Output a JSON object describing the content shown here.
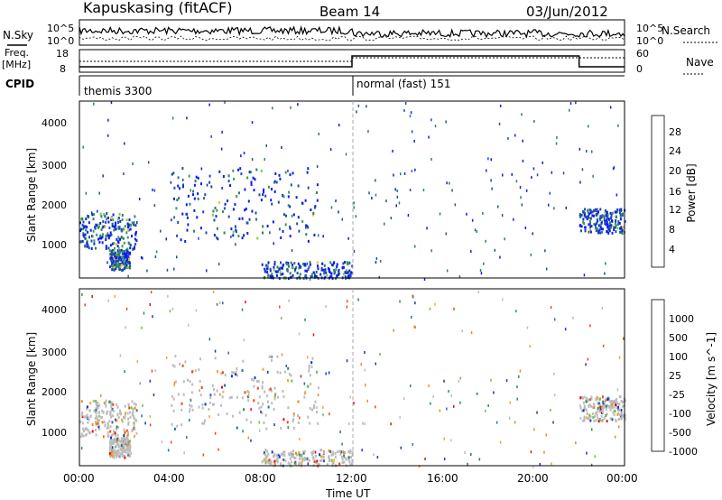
{
  "header": {
    "station": "Kapuskasing (fitACF)",
    "beam": "Beam 14",
    "date": "03/Jun/2012"
  },
  "top_panels": {
    "nsky_label": "N.Sky",
    "nsky_ticks": [
      "10^5",
      "10^0"
    ],
    "nsearch_label": "N.Search",
    "nsearch_ticks": [
      "10^5",
      "10^0"
    ],
    "freq_label": "Freq.",
    "freq_unit": "[MHz]",
    "freq_ticks": [
      "18",
      "8"
    ],
    "nave_label": "Nave",
    "nave_ticks": [
      "60",
      "0"
    ],
    "cpid_label": "CPID",
    "cpid_segments": [
      {
        "text": "themis 3300",
        "start_hour": 0,
        "end_hour": 12
      },
      {
        "text": "normal (fast) 151",
        "start_hour": 12,
        "end_hour": 24
      }
    ]
  },
  "colors": {
    "power_scale": [
      "#0a1ef0",
      "#1f4faa",
      "#2e7d6a",
      "#3e9a55",
      "#7ccf3c",
      "#f2c12e",
      "#f59a1e",
      "#f06a1a",
      "#e63b14",
      "#d01010"
    ],
    "velocity_scale": [
      "#1535c8",
      "#2a6ea0",
      "#2f8c5a",
      "#68c04a",
      "#bcbcbc",
      "#bcbcbc",
      "#f6a623",
      "#f08a1c",
      "#ec4a14",
      "#e01010"
    ]
  },
  "chart_data": [
    {
      "type": "heatmap",
      "panel": "Power",
      "xlabel": "",
      "ylabel": "Slant Range [km]",
      "ylim": [
        180,
        4500
      ],
      "xlim": [
        0,
        24
      ],
      "yticks": [
        "1000",
        "2000",
        "3000",
        "4000"
      ],
      "colorbar_label": "Power [dB]",
      "colorbar_ticks": [
        "28",
        "24",
        "20",
        "16",
        "12",
        "8",
        "4"
      ],
      "features": [
        {
          "from_hour": 0.0,
          "to_hour": 2.5,
          "range_km": [
            900,
            1800
          ],
          "level": "weak-moderate"
        },
        {
          "from_hour": 1.3,
          "to_hour": 2.2,
          "range_km": [
            400,
            900
          ],
          "level": "moderate"
        },
        {
          "from_hour": 4.0,
          "to_hour": 10.5,
          "range_km": [
            1100,
            2900
          ],
          "level": "weak-moderate"
        },
        {
          "from_hour": 8.0,
          "to_hour": 12.0,
          "range_km": [
            200,
            600
          ],
          "level": "moderate"
        },
        {
          "from_hour": 22.0,
          "to_hour": 24.0,
          "range_km": [
            1300,
            1900
          ],
          "level": "weak"
        }
      ]
    },
    {
      "type": "heatmap",
      "panel": "Velocity",
      "xlabel": "Time UT",
      "ylabel": "Slant Range [km]",
      "ylim": [
        180,
        4500
      ],
      "xlim": [
        0,
        24
      ],
      "xticks": [
        "00:00",
        "04:00",
        "08:00",
        "12:00",
        "16:00",
        "20:00",
        "00:00"
      ],
      "yticks": [
        "1000",
        "2000",
        "3000",
        "4000"
      ],
      "colorbar_label": "Velocity [m s^-1]",
      "colorbar_ticks": [
        "1000",
        "500",
        "100",
        "25",
        "-25",
        "-100",
        "-500",
        "-1000"
      ],
      "features": [
        {
          "from_hour": 0.0,
          "to_hour": 2.5,
          "range_km": [
            900,
            1800
          ],
          "level": "ground-scatter"
        },
        {
          "from_hour": 4.0,
          "to_hour": 10.5,
          "range_km": [
            1100,
            2900
          ],
          "level": "ground-scatter"
        },
        {
          "from_hour": 8.0,
          "to_hour": 12.0,
          "range_km": [
            200,
            600
          ],
          "level": "mixed"
        },
        {
          "from_hour": 22.0,
          "to_hour": 24.0,
          "range_km": [
            1300,
            1900
          ],
          "level": "mixed"
        }
      ]
    }
  ]
}
